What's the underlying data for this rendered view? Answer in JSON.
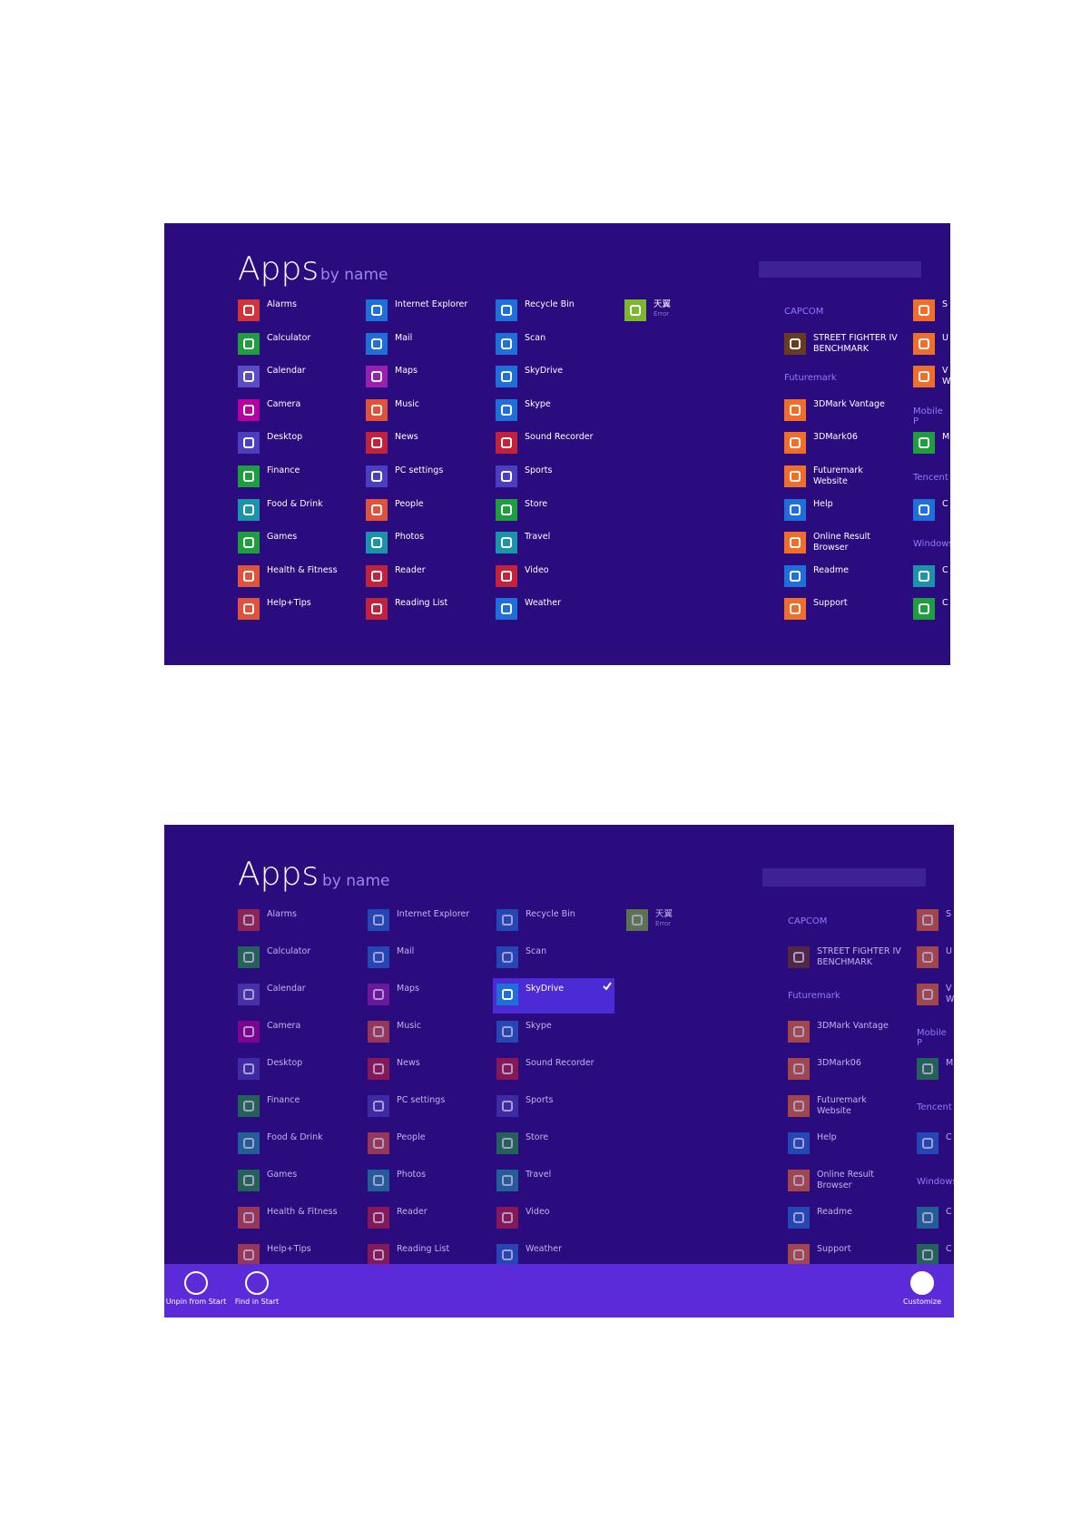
{
  "apps_screen": {
    "title": "Apps",
    "subtitle": "by name",
    "columns": [
      [
        {
          "name": "Alarms",
          "color": "#d13438"
        },
        {
          "name": "Calculator",
          "color": "#1e9e3e"
        },
        {
          "name": "Calendar",
          "color": "#5b4bc4"
        },
        {
          "name": "Camera",
          "color": "#b4009e"
        },
        {
          "name": "Desktop",
          "color": "#4a3fc0"
        },
        {
          "name": "Finance",
          "color": "#1e9e3e"
        },
        {
          "name": "Food & Drink",
          "color": "#1b93a8"
        },
        {
          "name": "Games",
          "color": "#1e9e3e"
        },
        {
          "name": "Health & Fitness",
          "color": "#e0533a"
        },
        {
          "name": "Help+Tips",
          "color": "#e0533a"
        }
      ],
      [
        {
          "name": "Internet Explorer",
          "color": "#1e6fd9"
        },
        {
          "name": "Mail",
          "color": "#1e6fd9"
        },
        {
          "name": "Maps",
          "color": "#9a1fb0"
        },
        {
          "name": "Music",
          "color": "#e0533a"
        },
        {
          "name": "News",
          "color": "#c4213a"
        },
        {
          "name": "PC settings",
          "color": "#4a3fc0"
        },
        {
          "name": "People",
          "color": "#e0533a"
        },
        {
          "name": "Photos",
          "color": "#1b93a8"
        },
        {
          "name": "Reader",
          "color": "#c4213a"
        },
        {
          "name": "Reading List",
          "color": "#c4213a"
        }
      ],
      [
        {
          "name": "Recycle Bin",
          "color": "#1e6fd9"
        },
        {
          "name": "Scan",
          "color": "#1e6fd9"
        },
        {
          "name": "SkyDrive",
          "color": "#1e6fd9"
        },
        {
          "name": "Skype",
          "color": "#1e6fd9"
        },
        {
          "name": "Sound Recorder",
          "color": "#c4213a"
        },
        {
          "name": "Sports",
          "color": "#4a3fc0"
        },
        {
          "name": "Store",
          "color": "#1e9e3e"
        },
        {
          "name": "Travel",
          "color": "#1b93a8"
        },
        {
          "name": "Video",
          "color": "#c4213a"
        },
        {
          "name": "Weather",
          "color": "#1e6fd9"
        }
      ],
      [
        {
          "name": "天翼",
          "detail": "Error",
          "color": "#7cb82f"
        }
      ],
      [
        {
          "header": "CAPCOM"
        },
        {
          "name": "STREET FIGHTER IV\nBENCHMARK",
          "color": "#6b3b1e"
        },
        {
          "header": "Futuremark"
        },
        {
          "name": "3DMark Vantage",
          "color": "#f06d2a"
        },
        {
          "name": "3DMark06",
          "color": "#f06d2a"
        },
        {
          "name": "Futuremark\nWebsite",
          "color": "#f06d2a"
        },
        {
          "name": "Help",
          "color": "#1e6fd9"
        },
        {
          "name": "Online Result\nBrowser",
          "color": "#f06d2a"
        },
        {
          "name": "Readme",
          "color": "#1e6fd9"
        },
        {
          "name": "Support",
          "color": "#f06d2a"
        }
      ],
      [
        {
          "name": "S",
          "color": "#f06d2a"
        },
        {
          "name": "U",
          "color": "#f06d2a"
        },
        {
          "name": "V\nW",
          "color": "#f06d2a"
        },
        {
          "header": "Mobile P"
        },
        {
          "name": "M",
          "color": "#1e9e3e"
        },
        {
          "header": "Tencent"
        },
        {
          "name": "C",
          "color": "#1e6fd9"
        },
        {
          "header": "Windows"
        },
        {
          "name": "C",
          "color": "#1b93a8"
        },
        {
          "name": "C",
          "color": "#1e9e3e"
        }
      ]
    ]
  },
  "second_screenshot": {
    "selected": "SkyDrive",
    "app_bar": {
      "left_items": [
        {
          "label": "Unpin from Start"
        },
        {
          "label": "Find in Start"
        }
      ],
      "right_items": [
        {
          "label": "Customize"
        }
      ]
    }
  }
}
